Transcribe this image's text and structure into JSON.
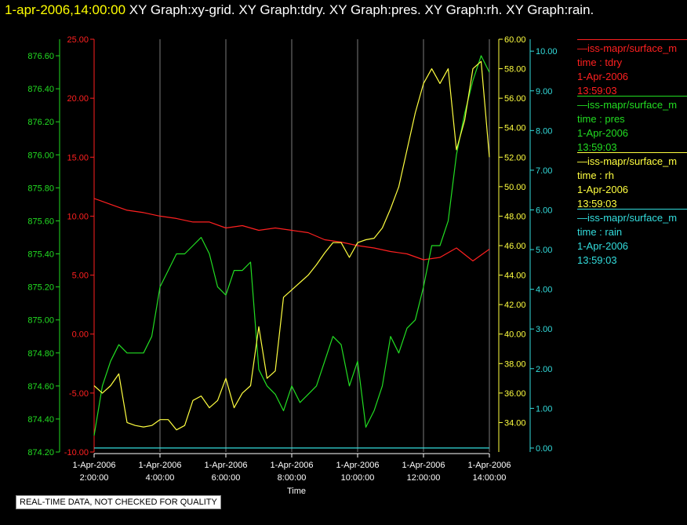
{
  "header": {
    "time": "1-apr-2006,14:00:00",
    "graphs": "XY Graph:xy-grid.  XY Graph:tdry.  XY Graph:pres.  XY Graph:rh.  XY Graph:rain."
  },
  "legend": [
    {
      "name": "—iss-mapr/surface_m",
      "field": "time : tdry",
      "date": "1-Apr-2006",
      "time": "13:59:03",
      "color": "#ff2020"
    },
    {
      "name": "—iss-mapr/surface_m",
      "field": "time : pres",
      "date": "1-Apr-2006",
      "time": "13:59:03",
      "color": "#22dd22"
    },
    {
      "name": "—iss-mapr/surface_m",
      "field": "time : rh",
      "date": "1-Apr-2006",
      "time": "13:59:03",
      "color": "#ffff40"
    },
    {
      "name": "—iss-mapr/surface_m",
      "field": "time : rain",
      "date": "1-Apr-2006",
      "time": "13:59:03",
      "color": "#33dddd"
    }
  ],
  "quality_note": "REAL-TIME DATA, NOT CHECKED FOR QUALITY",
  "chart_data": {
    "type": "line",
    "xlabel": "Time",
    "x_ticks": [
      {
        "hour": 2,
        "date": "1-Apr-2006",
        "time": "2:00:00"
      },
      {
        "hour": 4,
        "date": "1-Apr-2006",
        "time": "4:00:00"
      },
      {
        "hour": 6,
        "date": "1-Apr-2006",
        "time": "6:00:00"
      },
      {
        "hour": 8,
        "date": "1-Apr-2006",
        "time": "8:00:00"
      },
      {
        "hour": 10,
        "date": "1-Apr-2006",
        "time": "10:00:00"
      },
      {
        "hour": 12,
        "date": "1-Apr-2006",
        "time": "12:00:00"
      },
      {
        "hour": 14,
        "date": "1-Apr-2006",
        "time": "14:00:00"
      }
    ],
    "xlim": [
      2,
      14
    ],
    "grid": true,
    "legend_position": "right",
    "axes": [
      {
        "id": "tdry",
        "color": "#ff2020",
        "ylim": [
          -10,
          25
        ],
        "ticks": [
          "-10.00",
          "-5.00",
          "0.00",
          "5.00",
          "10.00",
          "15.00",
          "20.00",
          "25.00"
        ]
      },
      {
        "id": "pres",
        "color": "#22dd22",
        "ylim": [
          874.2,
          876.7
        ],
        "ticks": [
          "874.20",
          "874.40",
          "874.60",
          "874.80",
          "875.00",
          "875.20",
          "875.40",
          "875.60",
          "875.80",
          "876.00",
          "876.20",
          "876.40",
          "876.60"
        ]
      },
      {
        "id": "rh",
        "color": "#ffff40",
        "ylim": [
          32,
          60
        ],
        "ticks": [
          "34.00",
          "36.00",
          "38.00",
          "40.00",
          "42.00",
          "44.00",
          "46.00",
          "48.00",
          "50.00",
          "52.00",
          "54.00",
          "56.00",
          "58.00",
          "60.00"
        ]
      },
      {
        "id": "rain",
        "color": "#33dddd",
        "ylim": [
          -0.1,
          10.3
        ],
        "ticks": [
          "0.00",
          "1.00",
          "2.00",
          "3.00",
          "4.00",
          "5.00",
          "6.00",
          "7.00",
          "8.00",
          "9.00",
          "10.00"
        ]
      }
    ],
    "series": [
      {
        "axis": "tdry",
        "color": "#ff2020",
        "x": [
          2,
          2.5,
          3,
          3.5,
          4,
          4.5,
          5,
          5.5,
          6,
          6.5,
          7,
          7.5,
          8,
          8.5,
          9,
          9.5,
          10,
          10.5,
          11,
          11.5,
          12,
          12.5,
          13,
          13.5,
          14
        ],
        "y": [
          11.5,
          11.0,
          10.5,
          10.3,
          10.0,
          9.8,
          9.5,
          9.5,
          9.0,
          9.2,
          8.8,
          9.0,
          8.8,
          8.6,
          8.0,
          7.8,
          7.5,
          7.3,
          7.0,
          6.8,
          6.3,
          6.5,
          7.3,
          6.2,
          7.2
        ]
      },
      {
        "axis": "pres",
        "color": "#22dd22",
        "x": [
          2,
          2.25,
          2.5,
          2.75,
          3,
          3.25,
          3.5,
          3.75,
          4,
          4.25,
          4.5,
          4.75,
          5,
          5.25,
          5.5,
          5.75,
          6,
          6.25,
          6.5,
          6.75,
          7,
          7.25,
          7.5,
          7.75,
          8,
          8.25,
          8.5,
          8.75,
          9,
          9.25,
          9.5,
          9.75,
          10,
          10.25,
          10.5,
          10.75,
          11,
          11.25,
          11.5,
          11.75,
          12,
          12.25,
          12.5,
          12.75,
          13,
          13.25,
          13.5,
          13.75,
          14
        ],
        "y": [
          874.3,
          874.6,
          874.75,
          874.85,
          874.8,
          874.8,
          874.8,
          874.9,
          875.2,
          875.3,
          875.4,
          875.4,
          875.45,
          875.5,
          875.4,
          875.2,
          875.15,
          875.3,
          875.3,
          875.35,
          874.7,
          874.6,
          874.55,
          874.45,
          874.6,
          874.5,
          874.55,
          874.6,
          874.75,
          874.9,
          874.85,
          874.6,
          874.75,
          874.35,
          874.45,
          874.6,
          874.9,
          874.8,
          874.95,
          875.0,
          875.2,
          875.45,
          875.45,
          875.6,
          876.0,
          876.25,
          876.45,
          876.6,
          876.5
        ]
      },
      {
        "axis": "rh",
        "color": "#ffff40",
        "x": [
          2,
          2.25,
          2.5,
          2.75,
          3,
          3.25,
          3.5,
          3.75,
          4,
          4.25,
          4.5,
          4.75,
          5,
          5.25,
          5.5,
          5.75,
          6,
          6.25,
          6.5,
          6.75,
          7,
          7.25,
          7.5,
          7.75,
          8,
          8.25,
          8.5,
          8.75,
          9,
          9.25,
          9.5,
          9.75,
          10,
          10.25,
          10.5,
          10.75,
          11,
          11.25,
          11.5,
          11.75,
          12,
          12.25,
          12.5,
          12.75,
          13,
          13.25,
          13.5,
          13.75,
          14
        ],
        "y": [
          36.5,
          36,
          36.5,
          37.3,
          34,
          33.8,
          33.7,
          33.8,
          34.2,
          34.2,
          33.5,
          33.8,
          35.5,
          35.8,
          35,
          35.5,
          37,
          35,
          36,
          36.5,
          40.5,
          37,
          37.5,
          42.5,
          43,
          43.5,
          44,
          44.7,
          45.5,
          46.2,
          46.2,
          45.2,
          46.2,
          46.4,
          46.5,
          47.2,
          48.5,
          50,
          52.5,
          55,
          57,
          58,
          57,
          58,
          52.5,
          54.5,
          58,
          58.5,
          52
        ]
      },
      {
        "axis": "rain",
        "color": "#33dddd",
        "x": [
          2,
          14
        ],
        "y": [
          0,
          0
        ]
      }
    ]
  }
}
